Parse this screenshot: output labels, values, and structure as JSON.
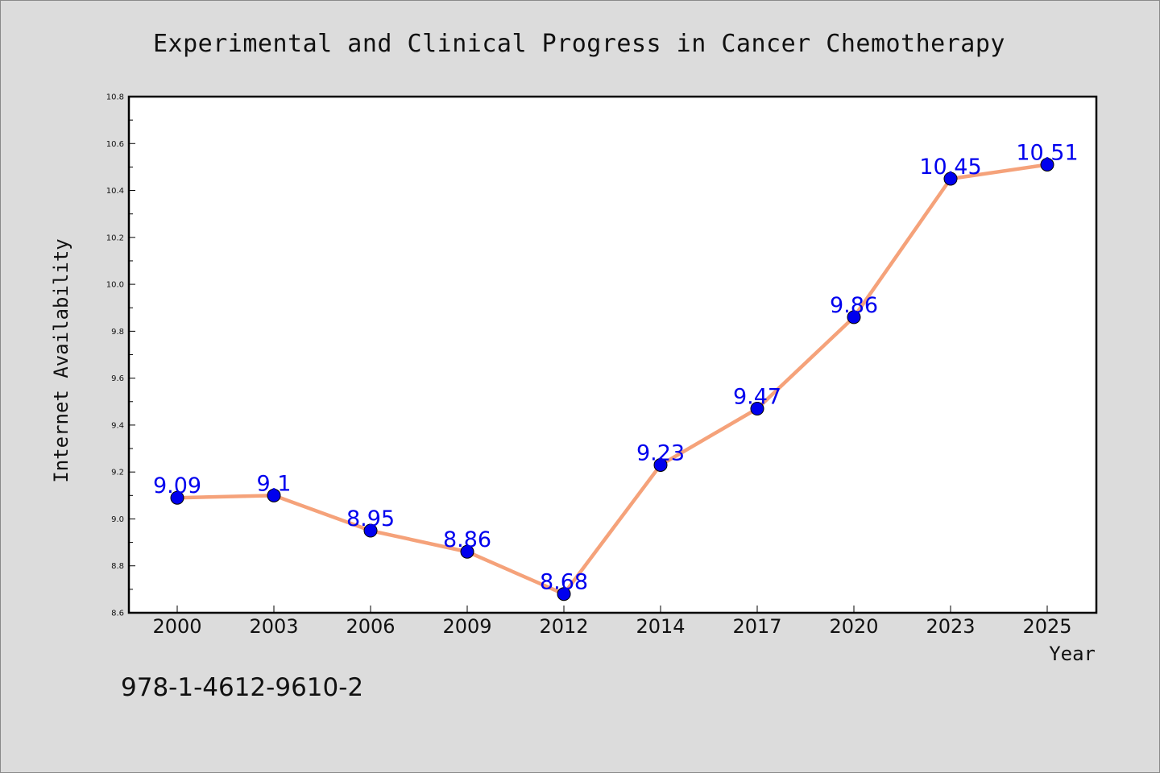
{
  "chart_data": {
    "type": "line",
    "title": "Experimental and Clinical Progress in Cancer Chemotherapy",
    "xlabel": "Year",
    "ylabel": "Internet Availability",
    "categories": [
      "2000",
      "2003",
      "2006",
      "2009",
      "2012",
      "2014",
      "2017",
      "2020",
      "2023",
      "2025"
    ],
    "series": [
      {
        "values": [
          9.09,
          9.1,
          8.95,
          8.86,
          8.68,
          9.23,
          9.47,
          9.86,
          10.45,
          10.51
        ],
        "data_labels": [
          "9.09",
          "9.1",
          "8.95",
          "8.86",
          "8.68",
          "9.23",
          "9.47",
          "9.86",
          "10.45",
          "10.51"
        ],
        "line_color": "#f5a27a",
        "marker_color": "#0000ee"
      }
    ],
    "ylim": [
      8.6,
      10.8
    ],
    "yticks": [
      "8.6",
      "8.8",
      "9.0",
      "9.2",
      "9.4",
      "9.6",
      "9.8",
      "10.0",
      "10.2",
      "10.4",
      "10.6",
      "10.8"
    ],
    "grid": false,
    "legend": "none"
  },
  "footer": {
    "isbn": "978-1-4612-9610-2"
  },
  "colors": {
    "background": "#dcdcdc",
    "plot_background": "#ffffff",
    "axis": "#000000"
  }
}
